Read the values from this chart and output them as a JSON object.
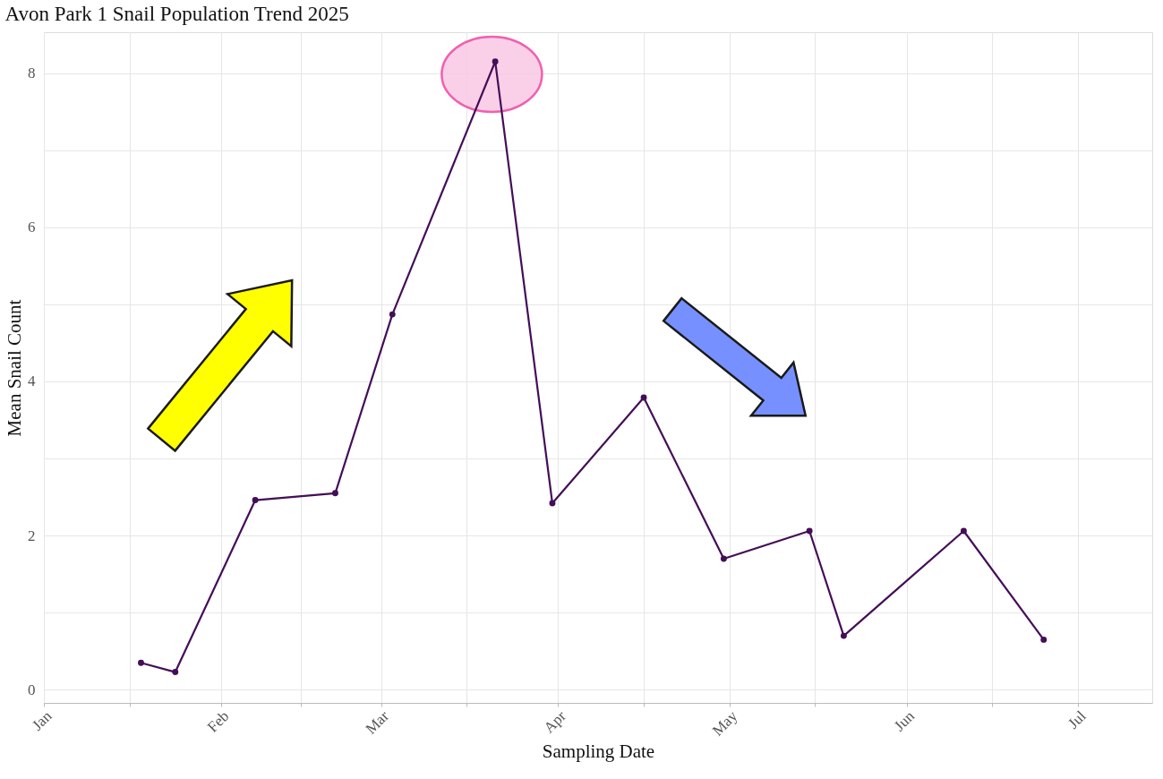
{
  "chart_data": {
    "type": "line",
    "title": "Avon Park 1 Snail Population Trend 2025",
    "xlabel": "Sampling Date",
    "ylabel": "Mean Snail Count",
    "x": [
      "2025-01-18",
      "2025-01-24",
      "2025-02-07",
      "2025-02-21",
      "2025-03-03",
      "2025-03-21",
      "2025-03-31",
      "2025-04-16",
      "2025-04-30",
      "2025-05-15",
      "2025-05-21",
      "2025-06-11",
      "2025-06-25"
    ],
    "series": [
      {
        "color": "#440e57",
        "values": [
          0.35,
          0.23,
          2.46,
          2.55,
          4.87,
          8.15,
          2.42,
          3.79,
          1.7,
          2.06,
          0.7,
          2.06,
          0.65
        ]
      }
    ],
    "xlim": [
      "2025-01-01",
      "2025-07-14"
    ],
    "xticks": [
      {
        "value": "2025-01-01",
        "label": "Jan"
      },
      {
        "value": "2025-01-16",
        "label": null
      },
      {
        "value": "2025-02-01",
        "label": "Feb"
      },
      {
        "value": "2025-02-15",
        "label": null
      },
      {
        "value": "2025-03-01",
        "label": "Mar"
      },
      {
        "value": "2025-03-16",
        "label": null
      },
      {
        "value": "2025-04-01",
        "label": "Apr"
      },
      {
        "value": "2025-04-16",
        "label": null
      },
      {
        "value": "2025-05-01",
        "label": "May"
      },
      {
        "value": "2025-05-16",
        "label": null
      },
      {
        "value": "2025-06-01",
        "label": "Jun"
      },
      {
        "value": "2025-06-16",
        "label": null
      },
      {
        "value": "2025-07-01",
        "label": "Jul"
      }
    ],
    "ylim": [
      -0.17,
      8.53
    ],
    "yticks": [
      0,
      {
        "value": 1,
        "label": null
      },
      2,
      {
        "value": 3,
        "label": null
      },
      4,
      {
        "value": 5,
        "label": null
      },
      6,
      {
        "value": 7,
        "label": null
      },
      8
    ],
    "grid": true,
    "marker": "circle",
    "line_style": "solid"
  }
}
